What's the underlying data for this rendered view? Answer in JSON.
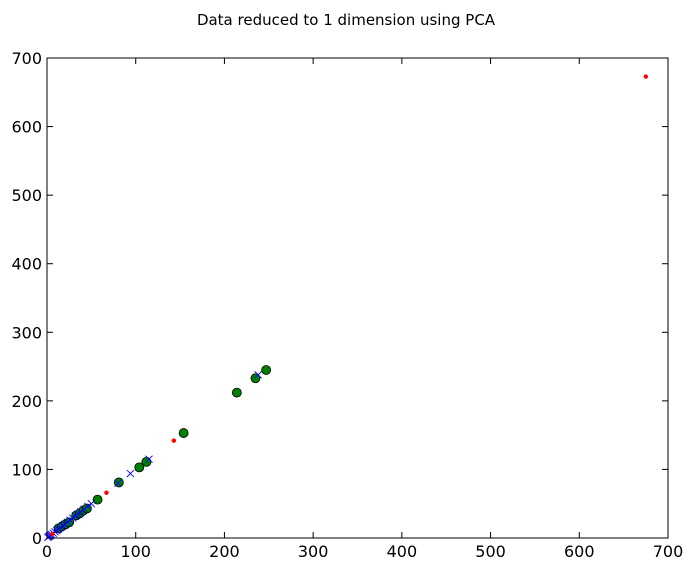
{
  "chart_data": {
    "type": "scatter",
    "title": "Data reduced to 1 dimension using PCA",
    "xlabel": "",
    "ylabel": "",
    "xlim": [
      0,
      700
    ],
    "ylim": [
      0,
      700
    ],
    "xticks": [
      0,
      100,
      200,
      300,
      400,
      500,
      600,
      700
    ],
    "yticks": [
      0,
      100,
      200,
      300,
      400,
      500,
      600,
      700
    ],
    "grid": false,
    "legend": "none",
    "series": [
      {
        "marker": "circle",
        "color": "#008000",
        "points": [
          [
            13,
            14
          ],
          [
            17,
            17
          ],
          [
            21,
            20
          ],
          [
            25,
            23
          ],
          [
            33,
            33
          ],
          [
            37,
            36
          ],
          [
            41,
            40
          ],
          [
            45,
            43
          ],
          [
            57,
            56
          ],
          [
            81,
            81
          ],
          [
            104,
            103
          ],
          [
            112,
            111
          ],
          [
            154,
            153
          ],
          [
            214,
            212
          ],
          [
            235,
            233
          ],
          [
            247,
            245
          ]
        ]
      },
      {
        "marker": "x",
        "color": "#0000ff",
        "points": [
          [
            1,
            1
          ],
          [
            2,
            2
          ],
          [
            3,
            3
          ],
          [
            4,
            4
          ],
          [
            5,
            5
          ],
          [
            7,
            7
          ],
          [
            9,
            9
          ],
          [
            11,
            11
          ],
          [
            13,
            13
          ],
          [
            15,
            15
          ],
          [
            18,
            18
          ],
          [
            20,
            20
          ],
          [
            23,
            23
          ],
          [
            26,
            26
          ],
          [
            29,
            29
          ],
          [
            32,
            32
          ],
          [
            35,
            35
          ],
          [
            38,
            38
          ],
          [
            42,
            42
          ],
          [
            46,
            46
          ],
          [
            50,
            50
          ],
          [
            80,
            80
          ],
          [
            94,
            94
          ],
          [
            115,
            115
          ],
          [
            238,
            238
          ]
        ]
      },
      {
        "marker": "dot",
        "color": "#ff0000",
        "points": [
          [
            6,
            6
          ],
          [
            67,
            66
          ],
          [
            143,
            142
          ],
          [
            675,
            673
          ]
        ]
      }
    ]
  }
}
